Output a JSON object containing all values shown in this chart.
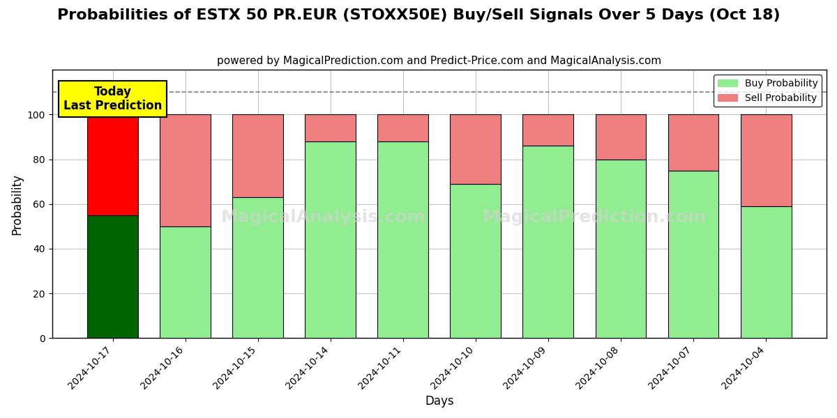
{
  "title": "Probabilities of ESTX 50 PR.EUR (STOXX50E) Buy/Sell Signals Over 5 Days (Oct 18)",
  "subtitle": "powered by MagicalPrediction.com and Predict-Price.com and MagicalAnalysis.com",
  "xlabel": "Days",
  "ylabel": "Probability",
  "categories": [
    "2024-10-17",
    "2024-10-16",
    "2024-10-15",
    "2024-10-14",
    "2024-10-11",
    "2024-10-10",
    "2024-10-09",
    "2024-10-08",
    "2024-10-07",
    "2024-10-04"
  ],
  "buy_values": [
    55,
    50,
    63,
    88,
    88,
    69,
    86,
    80,
    75,
    59
  ],
  "sell_values": [
    45,
    50,
    37,
    12,
    12,
    31,
    14,
    20,
    25,
    41
  ],
  "today_bar_buy_color": "#006400",
  "today_bar_sell_color": "#FF0000",
  "other_bar_buy_color": "#90EE90",
  "other_bar_sell_color": "#F08080",
  "bar_edgecolor": "#000000",
  "background_color": "#FFFFFF",
  "ylim": [
    0,
    120
  ],
  "yticks": [
    0,
    20,
    40,
    60,
    80,
    100
  ],
  "dashed_line_y": 110,
  "today_annotation": "Today\nLast Prediction",
  "watermark_texts": [
    "MagicalAnalysis.com",
    "MagicalPrediction.com"
  ],
  "title_fontsize": 16,
  "subtitle_fontsize": 11,
  "axis_label_fontsize": 12,
  "tick_fontsize": 10,
  "legend_fontsize": 10
}
